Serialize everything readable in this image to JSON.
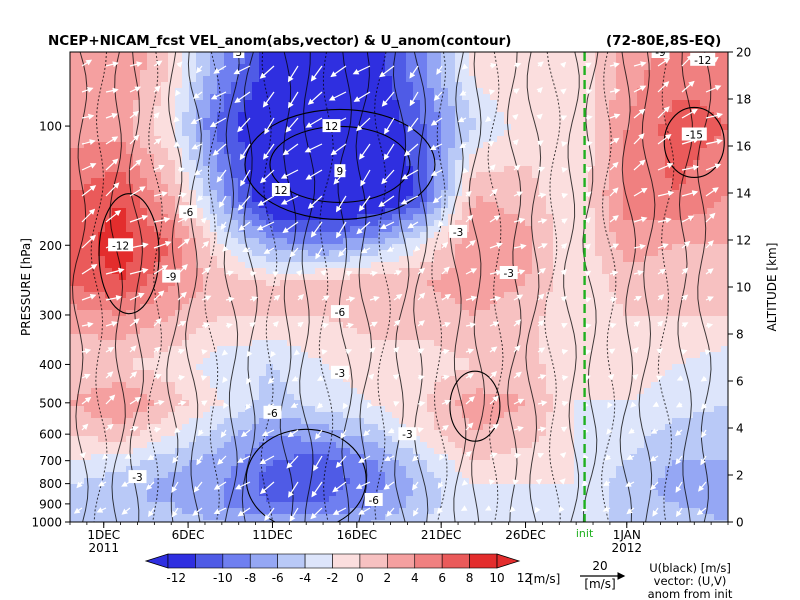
{
  "chart_data": {
    "type": "heatmap",
    "title": "NCEP+NICAM_fcst VEL_anom(abs,vector) & U_anom(contour)",
    "region": "(72-80E,8S-EQ)",
    "ylabel_left": "PRESSURE [hPa]",
    "ylabel_right": "ALTITUDE [km]",
    "pressure_ticks": [
      "100",
      "200",
      "300",
      "400",
      "500",
      "600",
      "700",
      "800",
      "900",
      "1000"
    ],
    "pressure_values": [
      100,
      200,
      300,
      400,
      500,
      600,
      700,
      800,
      900,
      1000
    ],
    "altitude_ticks": [
      "0",
      "2",
      "4",
      "6",
      "8",
      "10",
      "12",
      "14",
      "16",
      "18",
      "20"
    ],
    "date_ticks": [
      "1DEC",
      "6DEC",
      "11DEC",
      "16DEC",
      "21DEC",
      "26DEC",
      "1JAN"
    ],
    "date_tick_days": [
      0,
      5,
      10,
      15,
      20,
      25,
      31
    ],
    "year_labels": [
      "2011",
      "2012"
    ],
    "year_label_days": [
      0,
      31
    ],
    "x_range_days": [
      -2,
      37
    ],
    "init_label": "init",
    "init_day": 28.5,
    "colorbar": {
      "ticks": [
        "-12",
        "-10",
        "-8",
        "-6",
        "-4",
        "-2",
        "0",
        "2",
        "4",
        "6",
        "8",
        "10",
        "12"
      ],
      "unit": "[m/s]",
      "colors": [
        "#2f2fe0",
        "#4f5be6",
        "#6f7ff0",
        "#95a7f4",
        "#b9c9f7",
        "#dde5fb",
        "#fbdede",
        "#f7c1c1",
        "#f5a0a0",
        "#f08080",
        "#ea5a5a",
        "#e32d2d"
      ]
    },
    "vector_key": {
      "value": "20",
      "unit": "[m/s]"
    },
    "legend_text": [
      "U(black) [m/s]",
      "vector: (U,V)",
      "anom from init"
    ],
    "zonal_wind_anomaly_m_s": {
      "pressure_hPa": [
        70,
        100,
        150,
        200,
        250,
        300,
        400,
        500,
        600,
        700,
        800,
        900,
        1000
      ],
      "time_days": [
        -2,
        1,
        4,
        7,
        10,
        13,
        16,
        19,
        22,
        25,
        28,
        31,
        34,
        37
      ],
      "values": [
        [
          4,
          6,
          2,
          -6,
          -11,
          -12,
          -11,
          -6,
          1,
          2,
          0,
          5,
          7,
          7
        ],
        [
          5,
          5,
          0,
          -9,
          -13,
          -13,
          -13,
          -8,
          -2,
          1,
          0,
          6,
          9,
          8
        ],
        [
          8,
          10,
          4,
          -5,
          -14,
          -14,
          -14,
          -9,
          4,
          3,
          0,
          7,
          8,
          6
        ],
        [
          9,
          11,
          8,
          0,
          -5,
          -6,
          -4,
          0,
          6,
          5,
          0,
          5,
          4,
          4
        ],
        [
          8,
          10,
          6,
          3,
          2,
          3,
          4,
          4,
          5,
          4,
          0,
          3,
          2,
          3
        ],
        [
          5,
          6,
          4,
          2,
          2,
          2,
          3,
          3,
          4,
          3,
          0,
          2,
          2,
          2
        ],
        [
          2,
          2,
          1,
          -1,
          -2,
          0,
          1,
          1,
          2,
          3,
          0,
          1,
          0,
          -1
        ],
        [
          4,
          6,
          3,
          0,
          -3,
          -1,
          0,
          2,
          5,
          4,
          0,
          0,
          -1,
          -2
        ],
        [
          2,
          3,
          0,
          -3,
          -6,
          -5,
          -3,
          1,
          4,
          3,
          0,
          -1,
          -3,
          -3
        ],
        [
          0,
          -1,
          -3,
          -5,
          -8,
          -9,
          -6,
          -2,
          2,
          1,
          0,
          -2,
          -4,
          -4
        ],
        [
          -2,
          -3,
          -5,
          -6,
          -9,
          -9,
          -7,
          -3,
          0,
          0,
          0,
          -3,
          -5,
          -5
        ],
        [
          -3,
          -4,
          -4,
          -6,
          -8,
          -8,
          -6,
          -3,
          0,
          -1,
          0,
          -3,
          -4,
          -5
        ],
        [
          -3,
          -3,
          -3,
          -4,
          -5,
          -5,
          -4,
          -2,
          0,
          -1,
          0,
          -3,
          -3,
          -4
        ]
      ]
    },
    "contour_labels": [
      {
        "text": "12",
        "day": 10.5,
        "p": 145
      },
      {
        "text": "12",
        "day": 13.5,
        "p": 100
      },
      {
        "text": "9",
        "day": 14,
        "p": 130
      },
      {
        "text": "-12",
        "day": 1,
        "p": 200
      },
      {
        "text": "-9",
        "day": 4,
        "p": 240
      },
      {
        "text": "-6",
        "day": 5,
        "p": 165
      },
      {
        "text": "-6",
        "day": 14,
        "p": 295
      },
      {
        "text": "-3",
        "day": 21,
        "p": 185
      },
      {
        "text": "-3",
        "day": 14,
        "p": 420
      },
      {
        "text": "-6",
        "day": 10,
        "p": 530
      },
      {
        "text": "-3",
        "day": 18,
        "p": 600
      },
      {
        "text": "3",
        "day": 8,
        "p": 65
      },
      {
        "text": "-9",
        "day": 33,
        "p": 65
      },
      {
        "text": "-12",
        "day": 35.5,
        "p": 68
      },
      {
        "text": "-15",
        "day": 35,
        "p": 105
      },
      {
        "text": "-6",
        "day": 16,
        "p": 880
      },
      {
        "text": "-3",
        "day": 2,
        "p": 770
      },
      {
        "text": "-3",
        "day": 24,
        "p": 235
      }
    ]
  }
}
